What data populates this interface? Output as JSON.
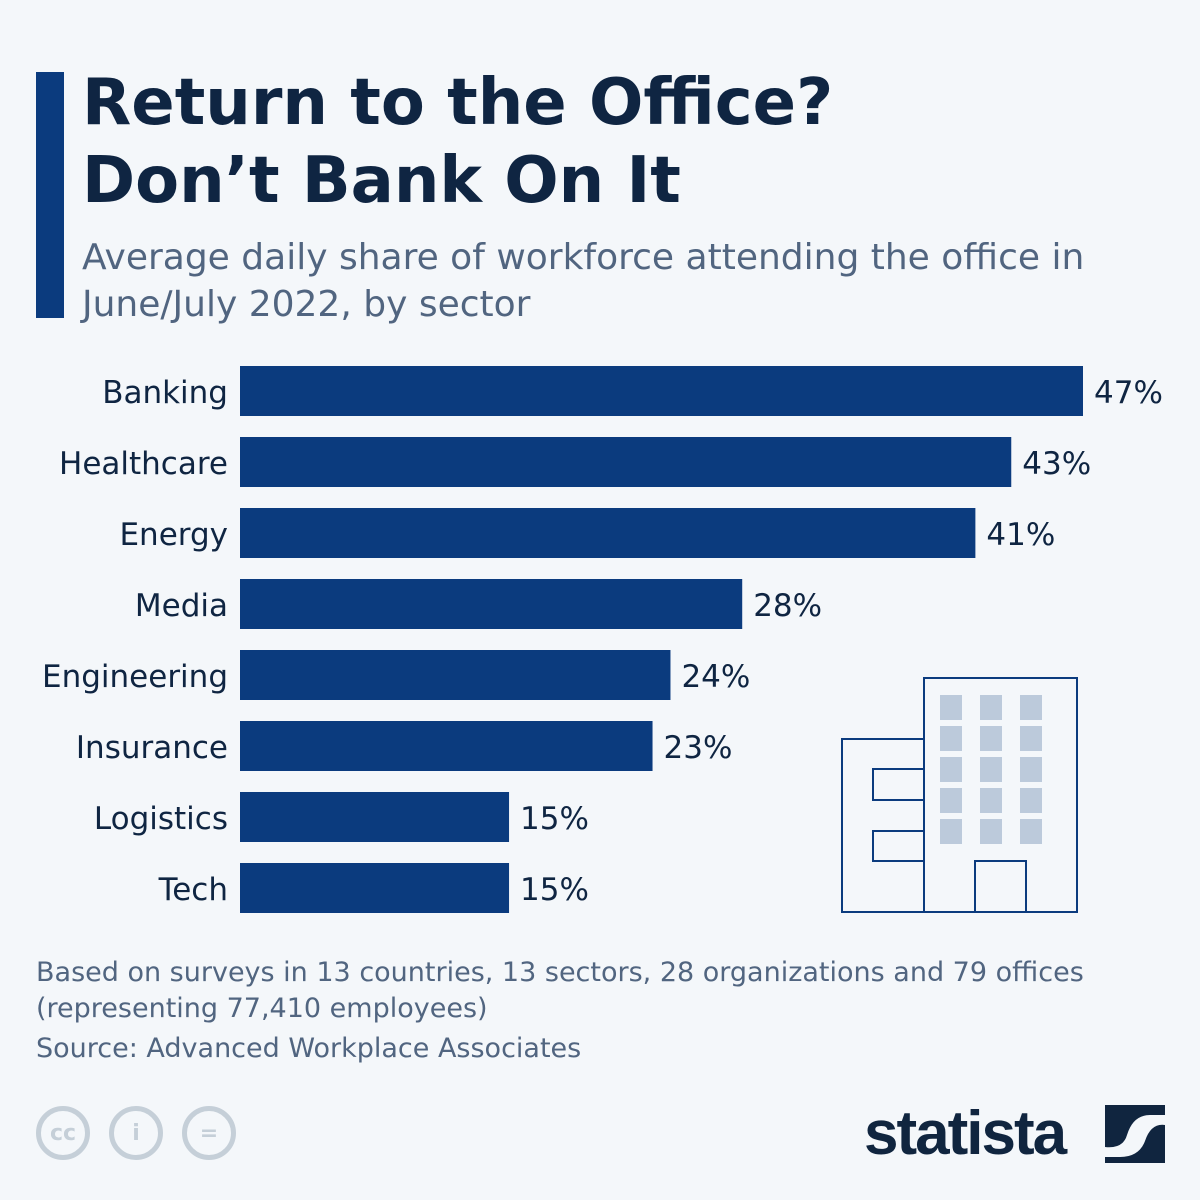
{
  "header": {
    "title_line1": "Return to the Office?",
    "title_line2": "Don’t Bank On It",
    "subtitle": "Average daily share of workforce attending the office in June/July 2022, by sector"
  },
  "chart_data": {
    "type": "bar",
    "orientation": "horizontal",
    "categories": [
      "Banking",
      "Healthcare",
      "Energy",
      "Media",
      "Engineering",
      "Insurance",
      "Logistics",
      "Tech"
    ],
    "values": [
      47,
      43,
      41,
      28,
      24,
      23,
      15,
      15
    ],
    "data_labels": [
      "47%",
      "43%",
      "41%",
      "28%",
      "24%",
      "23%",
      "15%",
      "15%"
    ],
    "unit": "%",
    "xlim": [
      0,
      47
    ],
    "grid": false,
    "bar_color": "#0b3b7e"
  },
  "footer": {
    "note": "Based on surveys in 13 countries, 13 sectors, 28 organizations and 79 offices (representing 77,410 employees)",
    "source": "Source: Advanced Workplace Associates",
    "brand": "statista",
    "license_icons": [
      "cc-icon",
      "attribution-icon",
      "no-derivatives-icon"
    ]
  },
  "colors": {
    "bar": "#0b3b7e",
    "title": "#0f2542",
    "text": "#516580",
    "background": "#f4f7fa"
  }
}
